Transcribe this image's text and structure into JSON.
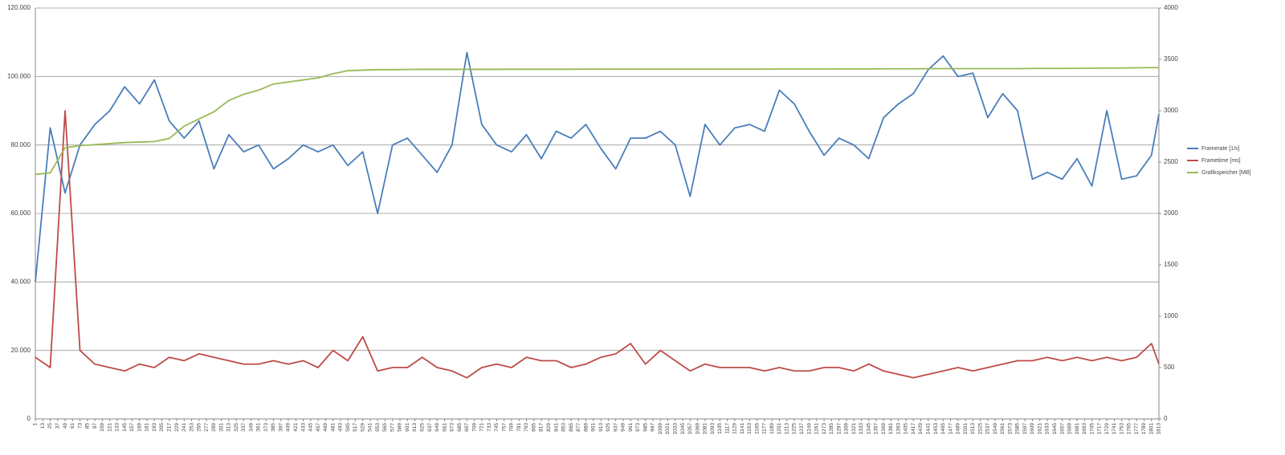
{
  "chart_data": {
    "type": "line",
    "x": [
      1,
      25,
      49,
      73,
      97,
      121,
      145,
      169,
      193,
      217,
      241,
      265,
      289,
      313,
      337,
      361,
      385,
      409,
      433,
      457,
      481,
      505,
      529,
      553,
      577,
      601,
      625,
      649,
      673,
      697,
      721,
      745,
      769,
      793,
      817,
      841,
      865,
      889,
      913,
      937,
      961,
      985,
      1009,
      1033,
      1057,
      1081,
      1105,
      1129,
      1153,
      1177,
      1201,
      1225,
      1249,
      1273,
      1297,
      1321,
      1345,
      1369,
      1393,
      1417,
      1441,
      1465,
      1489,
      1513,
      1537,
      1561,
      1585,
      1609,
      1633,
      1657,
      1681,
      1705,
      1729,
      1753,
      1777,
      1801,
      1813
    ],
    "series": [
      {
        "name": "Framerate [1/s]",
        "color": "#4a7ebb",
        "values": [
          40,
          85,
          66,
          80,
          86,
          90,
          97,
          92,
          99,
          87,
          82,
          87,
          73,
          83,
          78,
          80,
          73,
          76,
          80,
          78,
          80,
          74,
          78,
          60,
          80,
          82,
          77,
          72,
          80,
          107,
          86,
          80,
          78,
          83,
          76,
          84,
          82,
          86,
          79,
          73,
          82,
          82,
          84,
          80,
          65,
          86,
          80,
          85,
          86,
          84,
          96,
          92,
          84,
          77,
          82,
          80,
          76,
          88,
          92,
          95,
          102,
          106,
          100,
          101,
          88,
          95,
          90,
          70,
          72,
          70,
          76,
          68,
          90,
          70,
          71,
          77,
          89
        ]
      },
      {
        "name": "Frametime [ms]",
        "color": "#be4b48",
        "values": [
          18,
          15,
          90,
          20,
          16,
          15,
          14,
          16,
          15,
          18,
          17,
          19,
          18,
          17,
          16,
          16,
          17,
          16,
          17,
          15,
          20,
          17,
          24,
          14,
          15,
          15,
          18,
          15,
          14,
          12,
          15,
          16,
          15,
          18,
          17,
          17,
          15,
          16,
          18,
          19,
          22,
          16,
          20,
          17,
          14,
          16,
          15,
          15,
          15,
          14,
          15,
          14,
          14,
          15,
          15,
          14,
          16,
          14,
          13,
          12,
          13,
          14,
          15,
          14,
          15,
          16,
          17,
          17,
          18,
          17,
          18,
          17,
          18,
          17,
          18,
          22,
          16
        ]
      },
      {
        "name": "Grafikspeicher [MB]",
        "color": "#98b954",
        "axis": "y2",
        "values": [
          2380,
          2395,
          2640,
          2660,
          2670,
          2680,
          2690,
          2695,
          2700,
          2730,
          2850,
          2920,
          2990,
          3100,
          3160,
          3200,
          3260,
          3280,
          3300,
          3320,
          3360,
          3390,
          3395,
          3400,
          3400,
          3402,
          3403,
          3403,
          3403,
          3403,
          3403,
          3403,
          3404,
          3404,
          3404,
          3404,
          3404,
          3405,
          3405,
          3405,
          3405,
          3405,
          3405,
          3405,
          3405,
          3405,
          3405,
          3405,
          3405,
          3405,
          3406,
          3406,
          3406,
          3406,
          3407,
          3407,
          3407,
          3408,
          3408,
          3408,
          3410,
          3410,
          3410,
          3410,
          3410,
          3410,
          3410,
          3412,
          3412,
          3412,
          3413,
          3414,
          3415,
          3416,
          3418,
          3420,
          3420
        ]
      }
    ],
    "xlim": [
      1,
      1813
    ],
    "xticks": [
      1,
      13,
      25,
      37,
      49,
      61,
      73,
      85,
      97,
      109,
      121,
      133,
      145,
      157,
      169,
      181,
      193,
      205,
      217,
      229,
      241,
      253,
      265,
      277,
      289,
      301,
      313,
      325,
      337,
      349,
      361,
      373,
      385,
      397,
      409,
      421,
      433,
      445,
      457,
      469,
      481,
      493,
      505,
      517,
      529,
      541,
      553,
      565,
      577,
      589,
      601,
      613,
      625,
      637,
      649,
      661,
      673,
      685,
      697,
      709,
      721,
      733,
      745,
      757,
      769,
      781,
      793,
      805,
      817,
      829,
      841,
      853,
      865,
      877,
      889,
      901,
      913,
      925,
      937,
      949,
      961,
      973,
      985,
      997,
      1009,
      1021,
      1033,
      1045,
      1057,
      1069,
      1081,
      1093,
      1105,
      1117,
      1129,
      1141,
      1153,
      1165,
      1177,
      1189,
      1201,
      1213,
      1225,
      1237,
      1249,
      1261,
      1273,
      1285,
      1297,
      1309,
      1321,
      1333,
      1345,
      1357,
      1369,
      1381,
      1393,
      1405,
      1417,
      1429,
      1441,
      1453,
      1465,
      1477,
      1489,
      1501,
      1513,
      1525,
      1537,
      1549,
      1561,
      1573,
      1585,
      1597,
      1609,
      1621,
      1633,
      1645,
      1657,
      1669,
      1681,
      1693,
      1705,
      1717,
      1729,
      1741,
      1753,
      1765,
      1777,
      1789,
      1801,
      1813
    ],
    "ylim": [
      0,
      120
    ],
    "yticks": [
      0,
      {
        "value": 20,
        "label": "20.000"
      },
      {
        "value": 40,
        "label": "40.000"
      },
      {
        "value": 60,
        "label": "60.000"
      },
      {
        "value": 80,
        "label": "80.000"
      },
      {
        "value": 100,
        "label": "100.000"
      },
      {
        "value": 120,
        "label": "120.000"
      }
    ],
    "y2lim": [
      0,
      4000
    ],
    "y2ticks": [
      0,
      500,
      1000,
      1500,
      2000,
      2500,
      3000,
      3500,
      4000
    ],
    "grid": true,
    "legend": "right"
  }
}
